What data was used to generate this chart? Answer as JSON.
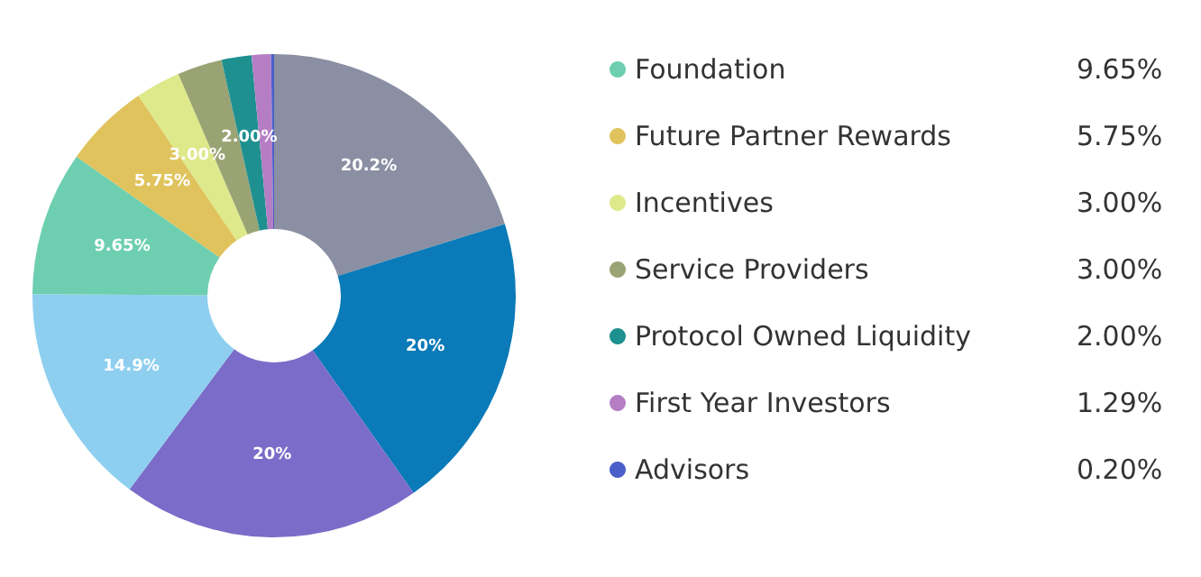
{
  "chart_data": {
    "type": "donut",
    "categories": [
      null,
      null,
      null,
      null,
      "Foundation",
      "Future Partner Rewards",
      "Incentives",
      "Service Providers",
      "Protocol Owned Liquidity",
      "First Year Investors",
      "Advisors"
    ],
    "values": [
      20.2,
      20,
      20,
      14.9,
      9.65,
      5.75,
      3.0,
      3.0,
      2.0,
      1.29,
      0.2
    ],
    "colors": [
      "#8a8fa3",
      "#0a7ab8",
      "#7b6cc9",
      "#8ecff0",
      "#6dcfb0",
      "#e0c35c",
      "#dde98a",
      "#9aa374",
      "#1e9090",
      "#b57ec4",
      "#4a5fc9"
    ],
    "value_labels": [
      "20.2%",
      "20%",
      "20%",
      "14.9%",
      "9.65%",
      "5.75%",
      "3.00%",
      null,
      "2.00%",
      null,
      null
    ],
    "annotations": [
      "9.65%",
      "5.75%",
      "3.00%",
      "3.00%",
      "2.00%",
      "1.29%",
      "0.20%"
    ],
    "legend": "right"
  }
}
